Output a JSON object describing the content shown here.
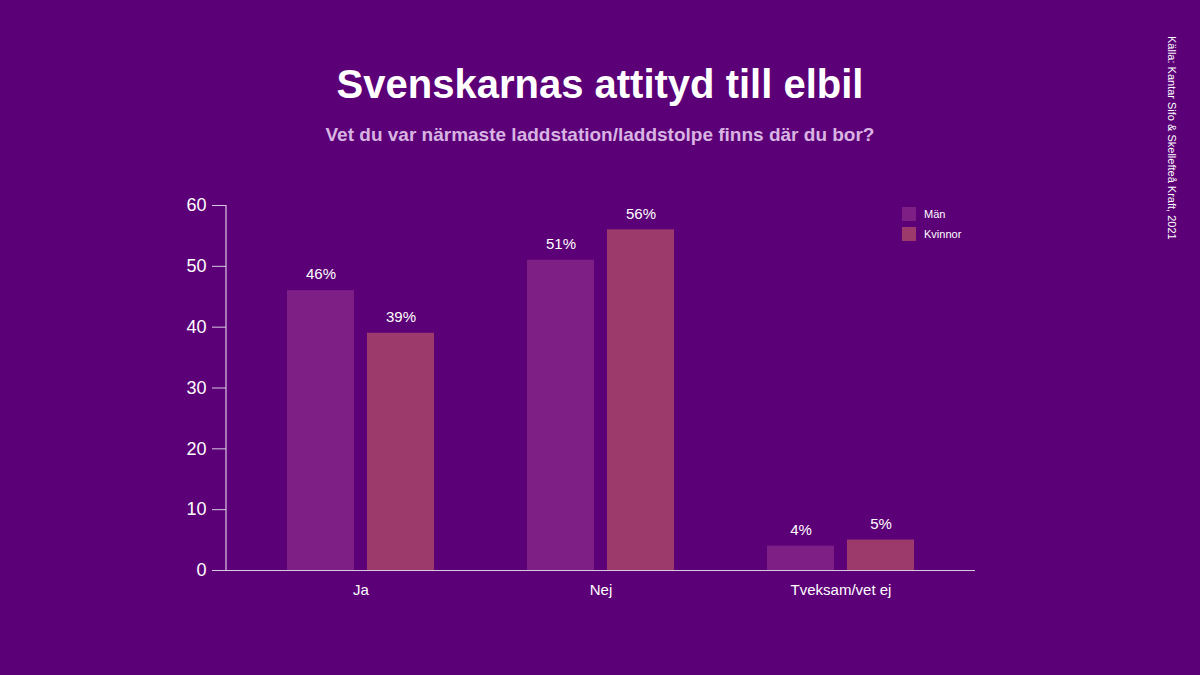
{
  "chart_data": {
    "type": "bar",
    "title": "Svenskarnas attityd till elbil",
    "subtitle": "Vet du var närmaste laddstation/laddstolpe finns där du bor?",
    "source": "Källa: Kantar Sifo & Skellefteå Kraft, 2021",
    "categories": [
      "Ja",
      "Nej",
      "Tveksam/vet ej"
    ],
    "series": [
      {
        "name": "Män",
        "color": "#7e1f86",
        "values": [
          46,
          51,
          4
        ],
        "value_labels": [
          "46%",
          "51%",
          "4%"
        ]
      },
      {
        "name": "Kvinnor",
        "color": "#9d3a6c",
        "values": [
          39,
          56,
          5
        ],
        "value_labels": [
          "39%",
          "56%",
          "5%"
        ]
      }
    ],
    "ylim": [
      0,
      60
    ],
    "yticks": [
      0,
      10,
      20,
      30,
      40,
      50,
      60
    ],
    "grid": false,
    "legend": "top-right",
    "data_labels": true
  }
}
